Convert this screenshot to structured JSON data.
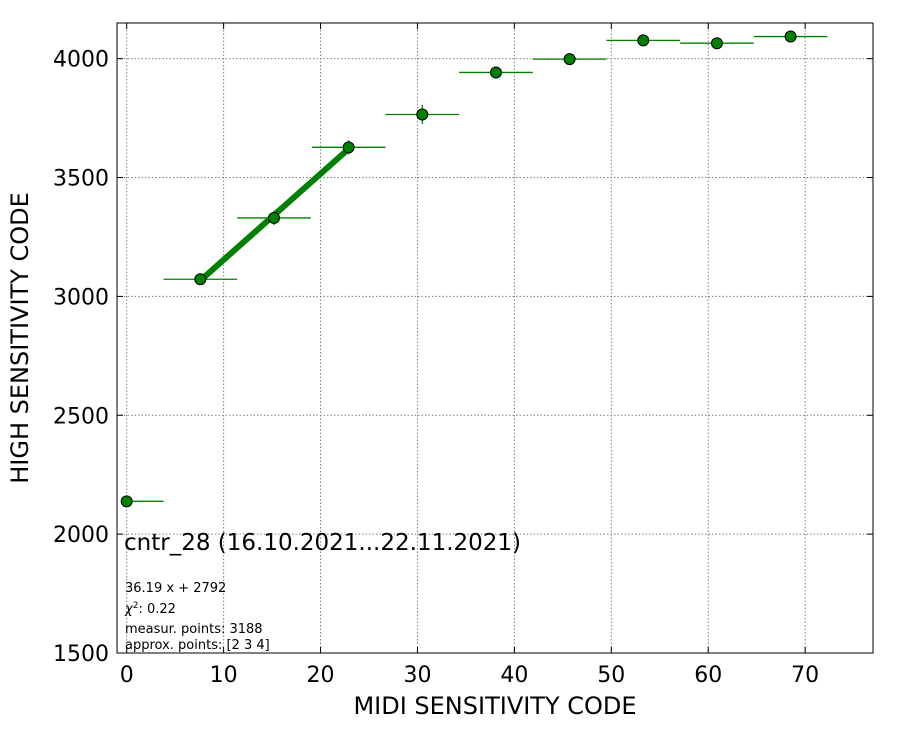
{
  "chart_data": {
    "type": "scatter",
    "xlabel": "MIDI SENSITIVITY CODE",
    "ylabel": "HIGH SENSITIVITY CODE",
    "xlim": [
      -1,
      77
    ],
    "ylim": [
      1500,
      4150
    ],
    "x_ticks": [
      0,
      10,
      20,
      30,
      40,
      50,
      60,
      70
    ],
    "y_ticks": [
      1500,
      2000,
      2500,
      3000,
      3500,
      4000
    ],
    "grid": true,
    "colors": {
      "marker": "#008000",
      "marker_edge": "#000000",
      "fit_line": "#008000",
      "grid": "#808080"
    },
    "points": [
      {
        "x": 0.0,
        "y": 2138,
        "xerr_lo": 0.0,
        "xerr_hi": 3.8,
        "yerr": 10
      },
      {
        "x": 7.6,
        "y": 3072,
        "xerr_lo": 3.8,
        "xerr_hi": 3.8,
        "yerr": 15
      },
      {
        "x": 15.2,
        "y": 3330,
        "xerr_lo": 3.8,
        "xerr_hi": 3.8,
        "yerr": 30
      },
      {
        "x": 22.9,
        "y": 3627,
        "xerr_lo": 3.8,
        "xerr_hi": 3.8,
        "yerr": 30
      },
      {
        "x": 30.5,
        "y": 3765,
        "xerr_lo": 3.8,
        "xerr_hi": 3.8,
        "yerr": 40
      },
      {
        "x": 38.1,
        "y": 3942,
        "xerr_lo": 3.8,
        "xerr_hi": 3.8,
        "yerr": 12
      },
      {
        "x": 45.7,
        "y": 3998,
        "xerr_lo": 3.8,
        "xerr_hi": 3.8,
        "yerr": 10
      },
      {
        "x": 53.3,
        "y": 4077,
        "xerr_lo": 3.8,
        "xerr_hi": 3.8,
        "yerr": 10
      },
      {
        "x": 60.9,
        "y": 4065,
        "xerr_lo": 3.8,
        "xerr_hi": 3.8,
        "yerr": 10
      },
      {
        "x": 68.5,
        "y": 4093,
        "xerr_lo": 3.8,
        "xerr_hi": 3.8,
        "yerr": 10
      }
    ],
    "fit": {
      "slope": 36.19,
      "intercept": 2792,
      "x_range": [
        7.6,
        22.9
      ]
    },
    "annotations": {
      "title": "cntr_28 (16.10.2021...22.11.2021)",
      "equation": "36.19 x + 2792",
      "chi2": ": 0.22",
      "measur_points": "measur. points: 3188",
      "approx_points": "approx. points: [2 3 4]"
    }
  }
}
